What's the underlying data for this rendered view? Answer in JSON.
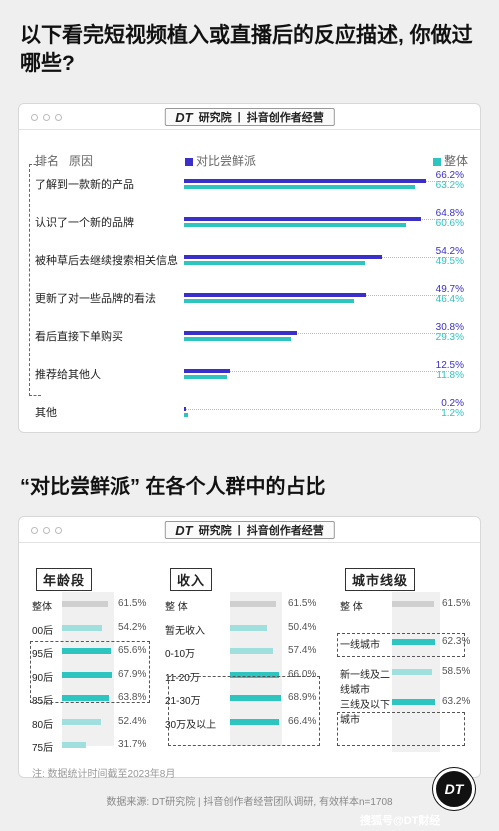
{
  "title": "以下看完短视频植入或直播后的反应描述, 你做过哪些?",
  "title2": "“对比尝鲜派” 在各个人群中的占比",
  "brand": {
    "logo": "DT",
    "logo_sub": "研究院",
    "divider": "|",
    "name": "抖音创作者经营"
  },
  "colors": {
    "blue": "#3b2fc9",
    "teal": "#2ec4c0",
    "gray": "#cfcfcf",
    "light_teal": "#9fe0de"
  },
  "chart_data": [
    {
      "type": "bar",
      "header_rank": "排名",
      "header_reason": "原因",
      "categories": [
        "了解到一款新的产品",
        "认识了一个新的品牌",
        "被种草后去继续搜索相关信息",
        "更新了对一些品牌的看法",
        "看后直接下单购买",
        "推荐给其他人",
        "其他"
      ],
      "series": [
        {
          "name": "对比尝鲜派",
          "values": [
            66.2,
            64.8,
            54.2,
            49.7,
            30.8,
            12.5,
            0.2
          ],
          "labels": [
            "66.2%",
            "64.8%",
            "54.2%",
            "49.7%",
            "30.8%",
            "12.5%",
            "0.2%"
          ]
        },
        {
          "name": "整体",
          "values": [
            63.2,
            60.6,
            49.5,
            46.4,
            29.3,
            11.8,
            1.2
          ],
          "labels": [
            "63.2%",
            "60.6%",
            "49.5%",
            "46.4%",
            "29.3%",
            "11.8%",
            "1.2%"
          ]
        }
      ],
      "xlim": [
        0,
        70
      ]
    },
    {
      "type": "bar",
      "groups": [
        {
          "title": "年龄段",
          "items": [
            {
              "label": "整体",
              "value": 61.5,
              "text": "61.5%",
              "kind": "overall"
            },
            {
              "label": "00后",
              "value": 54.2,
              "text": "54.2%",
              "kind": "low"
            },
            {
              "label": "95后",
              "value": 65.6,
              "text": "65.6%",
              "kind": "high"
            },
            {
              "label": "90后",
              "value": 67.9,
              "text": "67.9%",
              "kind": "high"
            },
            {
              "label": "85后",
              "value": 63.8,
              "text": "63.8%",
              "kind": "high"
            },
            {
              "label": "80后",
              "value": 52.4,
              "text": "52.4%",
              "kind": "low"
            },
            {
              "label": "75后",
              "value": 31.7,
              "text": "31.7%",
              "kind": "low"
            }
          ]
        },
        {
          "title": "收入",
          "items": [
            {
              "label": "整 体",
              "value": 61.5,
              "text": "61.5%",
              "kind": "overall"
            },
            {
              "label": "暂无收入",
              "value": 50.4,
              "text": "50.4%",
              "kind": "low"
            },
            {
              "label": "0-10万",
              "value": 57.4,
              "text": "57.4%",
              "kind": "low"
            },
            {
              "label": "11-20万",
              "value": 66.0,
              "text": "66.0%",
              "kind": "high"
            },
            {
              "label": "21-30万",
              "value": 68.9,
              "text": "68.9%",
              "kind": "high"
            },
            {
              "label": "30万及以上",
              "value": 66.4,
              "text": "66.4%",
              "kind": "high"
            }
          ]
        },
        {
          "title": "城市线级",
          "items": [
            {
              "label": "整 体",
              "value": 61.5,
              "text": "61.5%",
              "kind": "overall"
            },
            {
              "label": "一线城市",
              "value": 62.3,
              "text": "62.3%",
              "kind": "high"
            },
            {
              "label": "新一线及二线城市",
              "value": 58.5,
              "text": "58.5%",
              "kind": "low"
            },
            {
              "label": "三线及以下城市",
              "value": 63.2,
              "text": "63.2%",
              "kind": "high"
            }
          ]
        }
      ]
    }
  ],
  "footnote": "注: 数据统计时间截至2023年8月",
  "source": "数据来源: DT研究院 | 抖音创作者经营团队调研, 有效样本n=1708",
  "corner_logo": "DT",
  "watermark": "搜狐号@DT财经"
}
